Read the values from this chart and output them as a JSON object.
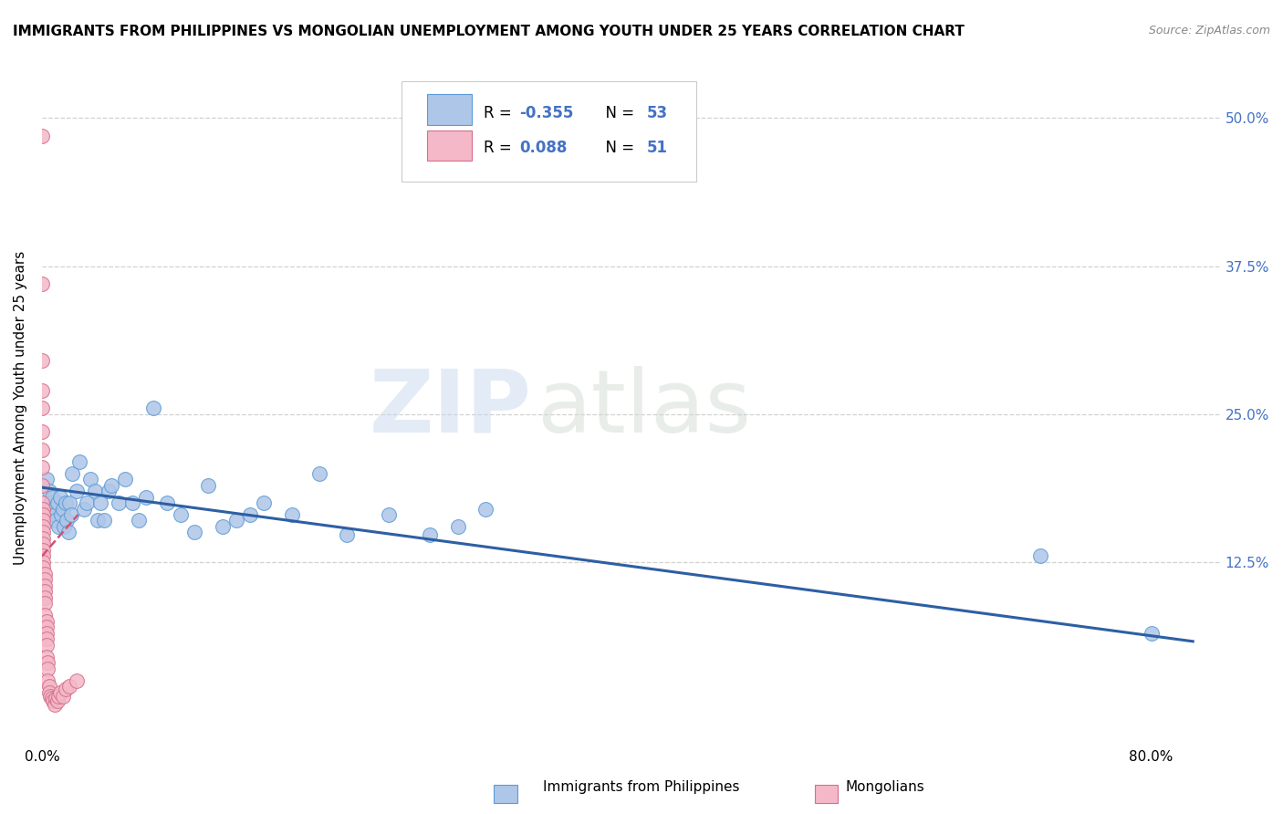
{
  "title": "IMMIGRANTS FROM PHILIPPINES VS MONGOLIAN UNEMPLOYMENT AMONG YOUTH UNDER 25 YEARS CORRELATION CHART",
  "source": "Source: ZipAtlas.com",
  "ylabel": "Unemployment Among Youth under 25 years",
  "xlim": [
    0.0,
    0.85
  ],
  "ylim": [
    -0.03,
    0.54
  ],
  "y_tick_positions": [
    0.125,
    0.25,
    0.375,
    0.5
  ],
  "y_tick_labels": [
    "12.5%",
    "25.0%",
    "37.5%",
    "50.0%"
  ],
  "x_tick_positions": [
    0.0,
    0.8
  ],
  "x_tick_labels": [
    "0.0%",
    "80.0%"
  ],
  "series_blue": {
    "name": "Immigrants from Philippines",
    "color": "#aec6e8",
    "edge_color": "#5b9bd5",
    "x": [
      0.003,
      0.005,
      0.006,
      0.007,
      0.008,
      0.009,
      0.01,
      0.011,
      0.012,
      0.013,
      0.014,
      0.015,
      0.016,
      0.017,
      0.018,
      0.019,
      0.02,
      0.021,
      0.022,
      0.025,
      0.027,
      0.03,
      0.032,
      0.035,
      0.038,
      0.04,
      0.042,
      0.045,
      0.048,
      0.05,
      0.055,
      0.06,
      0.065,
      0.07,
      0.075,
      0.08,
      0.09,
      0.1,
      0.11,
      0.12,
      0.13,
      0.14,
      0.15,
      0.16,
      0.18,
      0.2,
      0.22,
      0.25,
      0.28,
      0.3,
      0.32,
      0.72,
      0.8
    ],
    "y": [
      0.195,
      0.185,
      0.175,
      0.18,
      0.17,
      0.165,
      0.16,
      0.175,
      0.155,
      0.18,
      0.165,
      0.17,
      0.155,
      0.175,
      0.16,
      0.15,
      0.175,
      0.165,
      0.2,
      0.185,
      0.21,
      0.17,
      0.175,
      0.195,
      0.185,
      0.16,
      0.175,
      0.16,
      0.185,
      0.19,
      0.175,
      0.195,
      0.175,
      0.16,
      0.18,
      0.255,
      0.175,
      0.165,
      0.15,
      0.19,
      0.155,
      0.16,
      0.165,
      0.175,
      0.165,
      0.2,
      0.148,
      0.165,
      0.148,
      0.155,
      0.17,
      0.13,
      0.065
    ]
  },
  "series_pink": {
    "name": "Mongolians",
    "color": "#f4b8c8",
    "edge_color": "#d4708a",
    "x": [
      0.0,
      0.0,
      0.0,
      0.0,
      0.0,
      0.0,
      0.0,
      0.0,
      0.0,
      0.0,
      0.001,
      0.001,
      0.001,
      0.001,
      0.001,
      0.001,
      0.001,
      0.001,
      0.001,
      0.001,
      0.001,
      0.002,
      0.002,
      0.002,
      0.002,
      0.002,
      0.002,
      0.002,
      0.003,
      0.003,
      0.003,
      0.003,
      0.003,
      0.003,
      0.004,
      0.004,
      0.004,
      0.005,
      0.005,
      0.006,
      0.007,
      0.008,
      0.009,
      0.01,
      0.011,
      0.012,
      0.013,
      0.015,
      0.017,
      0.02,
      0.025
    ],
    "y": [
      0.485,
      0.36,
      0.295,
      0.27,
      0.255,
      0.235,
      0.22,
      0.205,
      0.19,
      0.175,
      0.17,
      0.165,
      0.16,
      0.155,
      0.15,
      0.145,
      0.14,
      0.135,
      0.13,
      0.125,
      0.12,
      0.115,
      0.11,
      0.105,
      0.1,
      0.095,
      0.09,
      0.08,
      0.075,
      0.07,
      0.065,
      0.06,
      0.055,
      0.045,
      0.04,
      0.035,
      0.025,
      0.02,
      0.015,
      0.012,
      0.01,
      0.008,
      0.005,
      0.01,
      0.008,
      0.012,
      0.015,
      0.012,
      0.018,
      0.02,
      0.025
    ]
  },
  "trend_blue": {
    "x_start": 0.0,
    "x_end": 0.83,
    "y_start": 0.188,
    "y_end": 0.058,
    "color": "#2e5fa3",
    "linewidth": 2.2
  },
  "trend_pink": {
    "x_start": 0.0,
    "x_end": 0.026,
    "y_start": 0.13,
    "y_end": 0.165,
    "color": "#d45070",
    "linewidth": 1.8,
    "linestyle": "--"
  },
  "watermark_text": "ZIP",
  "watermark_text2": "atlas",
  "background_color": "#ffffff",
  "grid_color": "#cccccc",
  "title_fontsize": 11,
  "axis_label_fontsize": 11,
  "tick_fontsize": 11,
  "source_fontsize": 9,
  "legend_R1": "-0.355",
  "legend_N1": "53",
  "legend_R2": "0.088",
  "legend_N2": "51",
  "legend_color_blue": "#aec6e8",
  "legend_color_pink": "#f4b8c8",
  "legend_text_color": "#4472c4",
  "legend_border_blue": "#5b9bd5",
  "legend_border_pink": "#d4708a"
}
